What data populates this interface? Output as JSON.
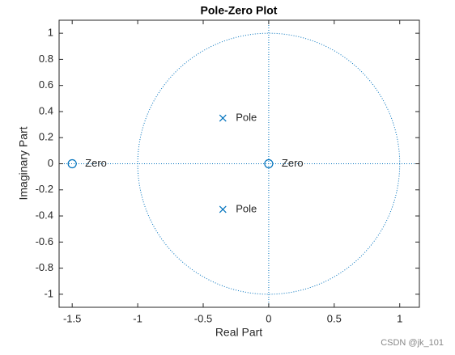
{
  "chart_data": {
    "type": "scatter",
    "title": "Pole-Zero Plot",
    "x_label": "Real Part",
    "y_label": "Imaginary Part",
    "series": [
      {
        "name": "Pole",
        "color": "#0072bd",
        "marker": "x",
        "x": [
          -0.35,
          -0.35
        ],
        "values": [
          0.35,
          -0.35
        ]
      },
      {
        "name": "Zero",
        "color": "#0072bd",
        "marker": "o",
        "x": [
          -1.5,
          0
        ],
        "values": [
          0,
          0
        ]
      }
    ],
    "xlim": [
      -1.6,
      1.15
    ],
    "ylim": [
      -1.1,
      1.1
    ],
    "xticks": [
      -1.5,
      -1,
      -0.5,
      0,
      0.5,
      1
    ],
    "yticks": [
      1,
      0.8,
      0.6,
      0.4,
      0.2,
      0,
      -0.2,
      -0.4,
      -0.6,
      -0.8,
      -1
    ],
    "grid": false
  },
  "watermark": "CSDN @jk_101"
}
